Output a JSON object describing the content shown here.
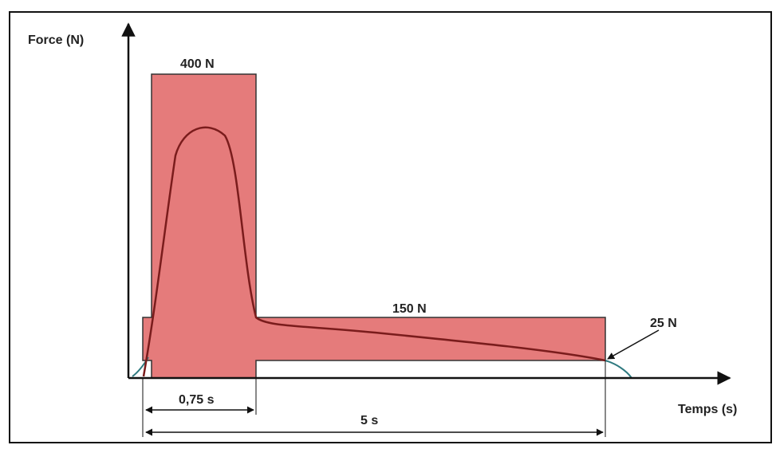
{
  "labels": {
    "y_axis": "Force (N)",
    "x_axis": "Temps (s)",
    "peak_force": "400 N",
    "hold_force": "150 N",
    "final_force": "25 N",
    "short_duration": "0,75 s",
    "total_duration": "5 s"
  },
  "colors": {
    "zone_fill": "#e57b7b",
    "zone_stroke": "#333333",
    "curve": "#7a1c1c",
    "tail_curve": "#2f7a80",
    "axis": "#111111",
    "frame": "#111111"
  }
}
